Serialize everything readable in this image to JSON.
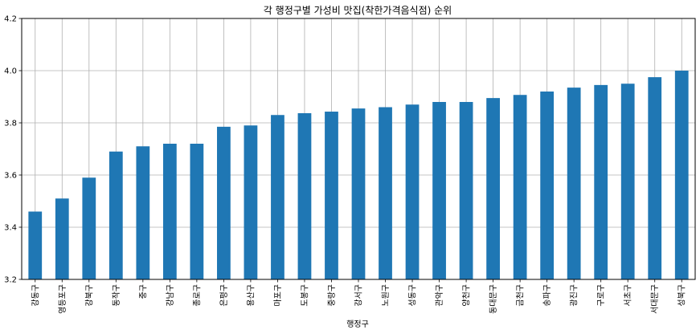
{
  "chart_data": {
    "type": "bar",
    "title": "각 행정구별 가성비 맛집(착한가격음식점) 순위",
    "xlabel": "행정구",
    "ylabel": "",
    "ylim": [
      3.2,
      4.2
    ],
    "yticks": [
      "3.2",
      "3.4",
      "3.6",
      "3.8",
      "4.0",
      "4.2"
    ],
    "grid": true,
    "bar_color": "#1f77b4",
    "categories": [
      "강동구",
      "영등포구",
      "강북구",
      "동작구",
      "중구",
      "강남구",
      "종로구",
      "은평구",
      "용산구",
      "마포구",
      "도봉구",
      "중랑구",
      "강서구",
      "노원구",
      "성동구",
      "관악구",
      "양천구",
      "동대문구",
      "금천구",
      "송파구",
      "광진구",
      "구로구",
      "서초구",
      "서대문구",
      "성북구"
    ],
    "values": [
      3.46,
      3.51,
      3.59,
      3.69,
      3.71,
      3.72,
      3.72,
      3.785,
      3.79,
      3.83,
      3.837,
      3.843,
      3.855,
      3.86,
      3.87,
      3.88,
      3.88,
      3.895,
      3.907,
      3.92,
      3.935,
      3.945,
      3.95,
      3.975,
      4.0
    ]
  }
}
